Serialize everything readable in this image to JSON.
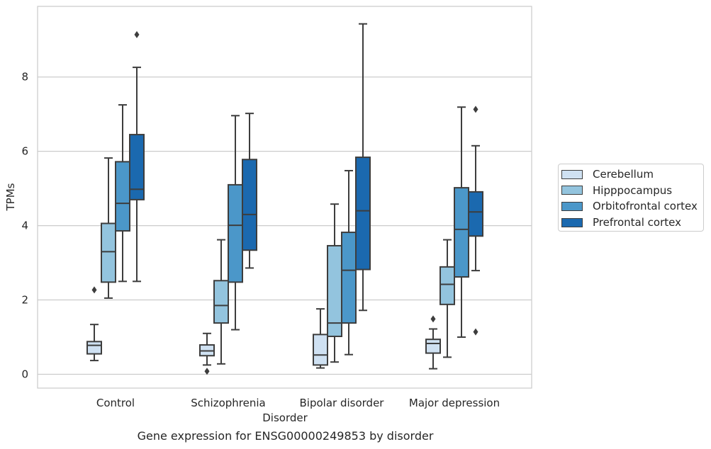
{
  "chart_data": {
    "type": "boxplot",
    "xlabel": "Disorder",
    "ylabel": "TPMs",
    "caption": "Gene expression for ENSG00000249853 by disorder",
    "categories": [
      "Control",
      "Schizophrenia",
      "Bipolar disorder",
      "Major depression"
    ],
    "ylim": [
      -0.35,
      9.85
    ],
    "yticks": [
      0,
      2,
      4,
      6,
      8
    ],
    "grid": true,
    "legend_position": "right",
    "series": [
      {
        "name": "Cerebellum",
        "color": "#cfe1f2",
        "boxes": [
          {
            "whislo": 0.37,
            "q1": 0.55,
            "med": 0.78,
            "q3": 0.88,
            "whishi": 1.34,
            "fliers": [
              2.27
            ]
          },
          {
            "whislo": 0.25,
            "q1": 0.5,
            "med": 0.63,
            "q3": 0.79,
            "whishi": 1.1,
            "fliers": [
              0.08
            ]
          },
          {
            "whislo": 0.17,
            "q1": 0.25,
            "med": 0.52,
            "q3": 1.07,
            "whishi": 1.76,
            "fliers": []
          },
          {
            "whislo": 0.15,
            "q1": 0.57,
            "med": 0.83,
            "q3": 0.94,
            "whishi": 1.22,
            "fliers": [
              1.49
            ]
          }
        ]
      },
      {
        "name": "Hipppocampus",
        "color": "#93c4de",
        "boxes": [
          {
            "whislo": 2.05,
            "q1": 2.48,
            "med": 3.3,
            "q3": 4.06,
            "whishi": 5.82,
            "fliers": []
          },
          {
            "whislo": 0.28,
            "q1": 1.38,
            "med": 1.85,
            "q3": 2.52,
            "whishi": 3.62,
            "fliers": []
          },
          {
            "whislo": 0.33,
            "q1": 1.02,
            "med": 1.38,
            "q3": 3.46,
            "whishi": 4.58,
            "fliers": []
          },
          {
            "whislo": 0.46,
            "q1": 1.88,
            "med": 2.42,
            "q3": 2.89,
            "whishi": 3.62,
            "fliers": []
          }
        ]
      },
      {
        "name": "Orbitofrontal cortex",
        "color": "#4b97c9",
        "boxes": [
          {
            "whislo": 2.5,
            "q1": 3.86,
            "med": 4.6,
            "q3": 5.72,
            "whishi": 7.25,
            "fliers": []
          },
          {
            "whislo": 1.2,
            "q1": 2.48,
            "med": 4.01,
            "q3": 5.1,
            "whishi": 6.96,
            "fliers": []
          },
          {
            "whislo": 0.53,
            "q1": 1.38,
            "med": 2.8,
            "q3": 3.82,
            "whishi": 5.48,
            "fliers": []
          },
          {
            "whislo": 1.0,
            "q1": 2.62,
            "med": 3.9,
            "q3": 5.02,
            "whishi": 7.19,
            "fliers": []
          }
        ]
      },
      {
        "name": "Prefrontal cortex",
        "color": "#1b69af",
        "boxes": [
          {
            "whislo": 2.5,
            "q1": 4.7,
            "med": 4.98,
            "q3": 6.45,
            "whishi": 8.26,
            "fliers": [
              9.14
            ]
          },
          {
            "whislo": 2.86,
            "q1": 3.34,
            "med": 4.3,
            "q3": 5.78,
            "whishi": 7.02,
            "fliers": []
          },
          {
            "whislo": 1.72,
            "q1": 2.82,
            "med": 4.4,
            "q3": 5.84,
            "whishi": 9.43,
            "fliers": []
          },
          {
            "whislo": 2.79,
            "q1": 3.72,
            "med": 4.37,
            "q3": 4.91,
            "whishi": 6.15,
            "fliers": [
              7.13,
              1.14
            ]
          }
        ]
      }
    ]
  }
}
